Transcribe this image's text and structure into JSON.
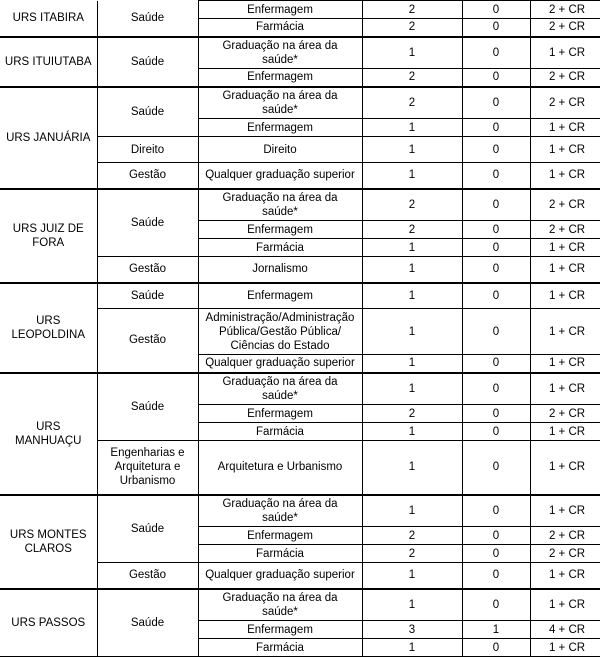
{
  "colors": {
    "border": "#000000",
    "background": "#ffffff",
    "text": "#000000"
  },
  "table": {
    "sections": [
      {
        "unit": "URS ITABIRA",
        "groups": [
          {
            "area": "Saúde",
            "rows": [
              {
                "course": "Enfermagem",
                "values": [
                  "2",
                  "0",
                  "2 + CR"
                ]
              },
              {
                "course": "Farmácia",
                "values": [
                  "2",
                  "0",
                  "2 + CR"
                ]
              }
            ]
          }
        ]
      },
      {
        "unit": "URS ITUIUTABA",
        "groups": [
          {
            "area": "Saúde",
            "rows": [
              {
                "course": "Graduação na área da\nsaúde*",
                "values": [
                  "1",
                  "0",
                  "1 + CR"
                ]
              },
              {
                "course": "Enfermagem",
                "values": [
                  "2",
                  "0",
                  "2 + CR"
                ]
              }
            ]
          }
        ]
      },
      {
        "unit": "URS JANUÁRIA",
        "groups": [
          {
            "area": "Saúde",
            "rows": [
              {
                "course": "Graduação na área da\nsaúde*",
                "values": [
                  "2",
                  "0",
                  "2 + CR"
                ]
              },
              {
                "course": "Enfermagem",
                "values": [
                  "1",
                  "0",
                  "1 + CR"
                ]
              }
            ]
          },
          {
            "area": "Direito",
            "rows": [
              {
                "course": "Direito",
                "values": [
                  "1",
                  "0",
                  "1 + CR"
                ]
              }
            ]
          },
          {
            "area": "Gestão",
            "rows": [
              {
                "course": "Qualquer graduação superior",
                "values": [
                  "1",
                  "0",
                  "1 + CR"
                ]
              }
            ]
          }
        ]
      },
      {
        "unit": "URS JUIZ DE\nFORA",
        "groups": [
          {
            "area": "Saúde",
            "rows": [
              {
                "course": "Graduação na área da\nsaúde*",
                "values": [
                  "2",
                  "0",
                  "2 + CR"
                ]
              },
              {
                "course": "Enfermagem",
                "values": [
                  "2",
                  "0",
                  "2 + CR"
                ]
              },
              {
                "course": "Farmácia",
                "values": [
                  "1",
                  "0",
                  "1 + CR"
                ]
              }
            ]
          },
          {
            "area": "Gestão",
            "rows": [
              {
                "course": "Jornalismo",
                "values": [
                  "1",
                  "0",
                  "1 + CR"
                ]
              }
            ]
          }
        ]
      },
      {
        "unit": "URS\nLEOPOLDINA",
        "groups": [
          {
            "area": "Saúde",
            "rows": [
              {
                "course": "Enfermagem",
                "values": [
                  "1",
                  "0",
                  "1 + CR"
                ]
              }
            ]
          },
          {
            "area": "Gestão",
            "rows": [
              {
                "course": "Administração/Administração\nPública/Gestão Pública/\nCiências do Estado",
                "values": [
                  "1",
                  "0",
                  "1 + CR"
                ]
              },
              {
                "course": "Qualquer graduação superior",
                "values": [
                  "1",
                  "0",
                  "1 + CR"
                ]
              }
            ]
          }
        ]
      },
      {
        "unit": "URS\nMANHUAÇU",
        "groups": [
          {
            "area": "Saúde",
            "rows": [
              {
                "course": "Graduação na área da\nsaúde*",
                "values": [
                  "1",
                  "0",
                  "1 + CR"
                ]
              },
              {
                "course": "Enfermagem",
                "values": [
                  "2",
                  "0",
                  "2 + CR"
                ]
              },
              {
                "course": "Farmácia",
                "values": [
                  "1",
                  "0",
                  "1 + CR"
                ]
              }
            ]
          },
          {
            "area": "Engenharias e\nArquitetura e\nUrbanismo",
            "rows": [
              {
                "course": "Arquitetura e Urbanismo",
                "values": [
                  "1",
                  "0",
                  "1 + CR"
                ]
              }
            ]
          }
        ]
      },
      {
        "unit": "URS MONTES\nCLAROS",
        "groups": [
          {
            "area": "Saúde",
            "rows": [
              {
                "course": "Graduação na área da\nsaúde*",
                "values": [
                  "1",
                  "0",
                  "1 + CR"
                ]
              },
              {
                "course": "Enfermagem",
                "values": [
                  "2",
                  "0",
                  "2 + CR"
                ]
              },
              {
                "course": "Farmácia",
                "values": [
                  "2",
                  "0",
                  "2 + CR"
                ]
              }
            ]
          },
          {
            "area": "Gestão",
            "rows": [
              {
                "course": "Qualquer graduação superior",
                "values": [
                  "1",
                  "0",
                  "1 + CR"
                ]
              }
            ]
          }
        ]
      },
      {
        "unit": "URS PASSOS",
        "groups": [
          {
            "area": "Saúde",
            "rows": [
              {
                "course": "Graduação na área da\nsaúde*",
                "values": [
                  "1",
                  "0",
                  "1 + CR"
                ]
              },
              {
                "course": "Enfermagem",
                "values": [
                  "3",
                  "1",
                  "4 + CR"
                ]
              },
              {
                "course": "Farmácia",
                "values": [
                  "1",
                  "0",
                  "1 + CR"
                ]
              }
            ]
          }
        ]
      }
    ]
  }
}
